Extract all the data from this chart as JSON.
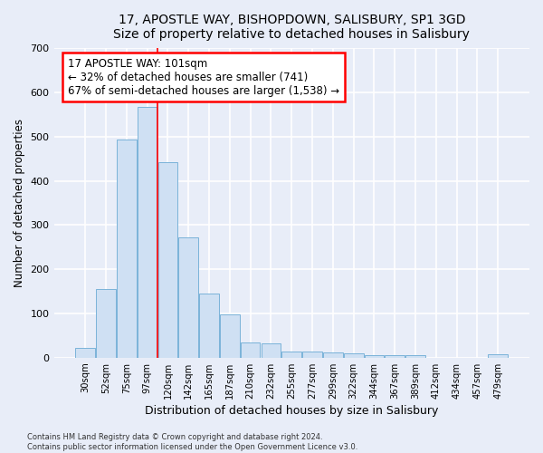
{
  "title": "17, APOSTLE WAY, BISHOPDOWN, SALISBURY, SP1 3GD",
  "subtitle": "Size of property relative to detached houses in Salisbury",
  "xlabel": "Distribution of detached houses by size in Salisbury",
  "ylabel": "Number of detached properties",
  "bar_labels": [
    "30sqm",
    "52sqm",
    "75sqm",
    "97sqm",
    "120sqm",
    "142sqm",
    "165sqm",
    "187sqm",
    "210sqm",
    "232sqm",
    "255sqm",
    "277sqm",
    "299sqm",
    "322sqm",
    "344sqm",
    "367sqm",
    "389sqm",
    "412sqm",
    "434sqm",
    "457sqm",
    "479sqm"
  ],
  "bar_values": [
    22,
    155,
    493,
    567,
    443,
    273,
    145,
    97,
    35,
    32,
    15,
    15,
    12,
    10,
    6,
    5,
    5,
    0,
    0,
    0,
    8
  ],
  "bar_color": "#cfe0f3",
  "bar_edge_color": "#7ab3d9",
  "ylim": [
    0,
    700
  ],
  "yticks": [
    0,
    100,
    200,
    300,
    400,
    500,
    600,
    700
  ],
  "vline_x_index": 3.5,
  "annotation_line1": "17 APOSTLE WAY: 101sqm",
  "annotation_line2": "← 32% of detached houses are smaller (741)",
  "annotation_line3": "67% of semi-detached houses are larger (1,538) →",
  "footer1": "Contains HM Land Registry data © Crown copyright and database right 2024.",
  "footer2": "Contains public sector information licensed under the Open Government Licence v3.0.",
  "background_color": "#e8edf8",
  "grid_color": "#ffffff"
}
